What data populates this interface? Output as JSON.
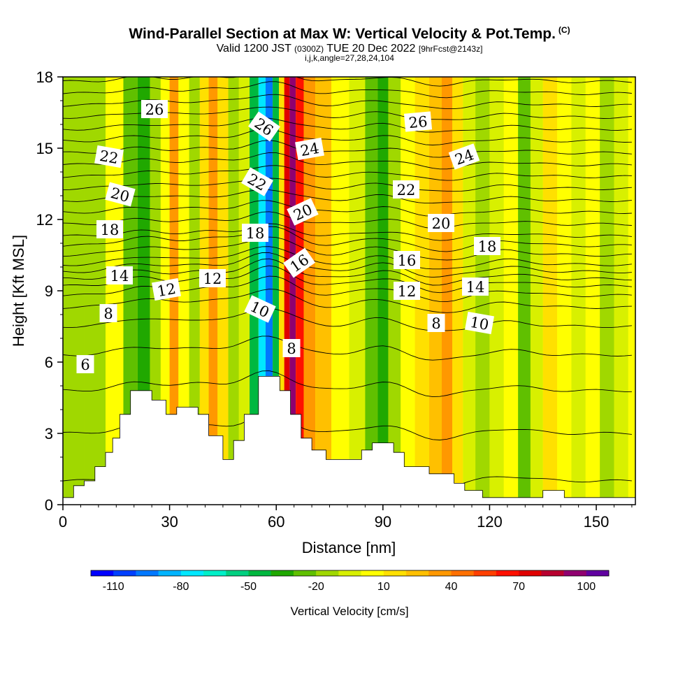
{
  "header": {
    "title": "Wind-Parallel Section at Max W: Vertical Velocity & Pot.Temp.",
    "copyright": "(C)",
    "subtitle_valid": "Valid 1200 JST",
    "subtitle_utc": "(0300Z)",
    "subtitle_date": "TUE 20 Dec 2022",
    "subtitle_fcst": "[9hrFcst@2143z]",
    "params": "i,j,k,angle=27,28,24,104"
  },
  "chart_data": {
    "type": "heatmap",
    "title": "Wind-Parallel Section at Max W: Vertical Velocity & Pot.Temp.",
    "xlabel": "Distance [nm]",
    "ylabel": "Height [Kft MSL]",
    "xlim": [
      0,
      161
    ],
    "ylim": [
      0,
      18
    ],
    "xticks": [
      0,
      30,
      60,
      90,
      120,
      150
    ],
    "yticks": [
      0,
      3,
      6,
      9,
      12,
      15,
      18
    ],
    "grid": false,
    "colorbar": {
      "title": "Vertical Velocity [cm/s]",
      "tick_labels": [
        "-110",
        "-80",
        "-50",
        "-20",
        "10",
        "40",
        "70",
        "100"
      ],
      "tick_values": [
        -110,
        -80,
        -50,
        -20,
        10,
        40,
        70,
        100
      ],
      "range": [
        -120,
        110
      ],
      "colors": [
        "#0000ff",
        "#0040ff",
        "#0078ff",
        "#00b4ff",
        "#00e8ff",
        "#00f0c8",
        "#00d080",
        "#00b840",
        "#20a800",
        "#60c000",
        "#a0d800",
        "#d8f000",
        "#ffff00",
        "#ffe000",
        "#ffc000",
        "#ff9800",
        "#ff7000",
        "#ff4000",
        "#ff1000",
        "#e00000",
        "#b80030",
        "#900070",
        "#6000a0"
      ]
    },
    "velocity_columns": [
      {
        "x": 3,
        "w": -18
      },
      {
        "x": 9,
        "w": -12
      },
      {
        "x": 15,
        "w": 0
      },
      {
        "x": 19,
        "w": -25
      },
      {
        "x": 23,
        "w": -40
      },
      {
        "x": 26,
        "w": -15
      },
      {
        "x": 29,
        "w": 8
      },
      {
        "x": 31,
        "w": 30
      },
      {
        "x": 34,
        "w": 5
      },
      {
        "x": 37,
        "w": -15
      },
      {
        "x": 40,
        "w": 18
      },
      {
        "x": 42,
        "w": 38
      },
      {
        "x": 45,
        "w": 12
      },
      {
        "x": 48,
        "w": -15
      },
      {
        "x": 51,
        "w": -10
      },
      {
        "x": 54,
        "w": -45
      },
      {
        "x": 56,
        "w": -75
      },
      {
        "x": 58,
        "w": -100
      },
      {
        "x": 60,
        "w": -50
      },
      {
        "x": 61.5,
        "w": 10
      },
      {
        "x": 63,
        "w": 75
      },
      {
        "x": 64.5,
        "w": 95
      },
      {
        "x": 66.5,
        "w": 60
      },
      {
        "x": 69,
        "w": 32
      },
      {
        "x": 73,
        "w": 22
      },
      {
        "x": 78,
        "w": 8
      },
      {
        "x": 83,
        "w": -5
      },
      {
        "x": 87,
        "w": -22
      },
      {
        "x": 90,
        "w": -40
      },
      {
        "x": 93,
        "w": -18
      },
      {
        "x": 97,
        "w": 0
      },
      {
        "x": 101,
        "w": 12
      },
      {
        "x": 105,
        "w": 25
      },
      {
        "x": 108,
        "w": 35
      },
      {
        "x": 111,
        "w": 15
      },
      {
        "x": 114,
        "w": -5
      },
      {
        "x": 118,
        "w": -20
      },
      {
        "x": 122,
        "w": -5
      },
      {
        "x": 126,
        "w": 5
      },
      {
        "x": 130,
        "w": -28
      },
      {
        "x": 133,
        "w": -8
      },
      {
        "x": 137,
        "w": 12
      },
      {
        "x": 141,
        "w": 3
      },
      {
        "x": 145,
        "w": -10
      },
      {
        "x": 149,
        "w": 5
      },
      {
        "x": 153,
        "w": -20
      },
      {
        "x": 157,
        "w": -10
      },
      {
        "x": 161,
        "w": 5
      }
    ],
    "potential_temperature": {
      "label_values": [
        "6",
        "8",
        "8",
        "8",
        "10",
        "10",
        "12",
        "12",
        "12",
        "14",
        "14",
        "16",
        "16",
        "18",
        "18",
        "18",
        "20",
        "20",
        "20",
        "22",
        "22",
        "22",
        "24",
        "24",
        "26",
        "26",
        "26"
      ],
      "levels_deg_c": [
        4,
        5,
        6,
        7,
        8,
        9,
        10,
        11,
        12,
        13,
        14,
        15,
        16,
        17,
        18,
        19,
        20,
        21,
        22,
        23,
        24,
        25,
        26,
        27,
        28,
        29,
        30
      ],
      "base_heights_kft": [
        1.0,
        3.0,
        4.8,
        6.3,
        7.5,
        8.3,
        8.8,
        9.2,
        9.5,
        9.8,
        10.1,
        10.5,
        10.9,
        11.3,
        11.8,
        12.3,
        12.8,
        13.3,
        13.8,
        14.3,
        14.8,
        15.3,
        15.8,
        16.3,
        16.8,
        17.3,
        17.8
      ]
    },
    "terrain": [
      {
        "x": 0,
        "h": 0.3
      },
      {
        "x": 3,
        "h": 0.8
      },
      {
        "x": 6,
        "h": 1.0
      },
      {
        "x": 9,
        "h": 1.6
      },
      {
        "x": 12,
        "h": 2.2
      },
      {
        "x": 14,
        "h": 2.8
      },
      {
        "x": 16,
        "h": 3.8
      },
      {
        "x": 19,
        "h": 4.8
      },
      {
        "x": 25,
        "h": 4.4
      },
      {
        "x": 29,
        "h": 3.8
      },
      {
        "x": 32,
        "h": 4.1
      },
      {
        "x": 38,
        "h": 3.8
      },
      {
        "x": 41,
        "h": 2.9
      },
      {
        "x": 45,
        "h": 1.9
      },
      {
        "x": 48,
        "h": 2.7
      },
      {
        "x": 51,
        "h": 3.8
      },
      {
        "x": 55,
        "h": 5.4
      },
      {
        "x": 61,
        "h": 4.8
      },
      {
        "x": 64,
        "h": 3.8
      },
      {
        "x": 67,
        "h": 2.8
      },
      {
        "x": 70,
        "h": 2.3
      },
      {
        "x": 74,
        "h": 1.9
      },
      {
        "x": 84,
        "h": 2.3
      },
      {
        "x": 87,
        "h": 2.6
      },
      {
        "x": 93,
        "h": 2.2
      },
      {
        "x": 96,
        "h": 1.6
      },
      {
        "x": 103,
        "h": 1.3
      },
      {
        "x": 110,
        "h": 0.9
      },
      {
        "x": 113,
        "h": 0.6
      },
      {
        "x": 118,
        "h": 0.3
      },
      {
        "x": 135,
        "h": 0.6
      },
      {
        "x": 141,
        "h": 0.3
      },
      {
        "x": 161,
        "h": 0.3
      }
    ]
  }
}
